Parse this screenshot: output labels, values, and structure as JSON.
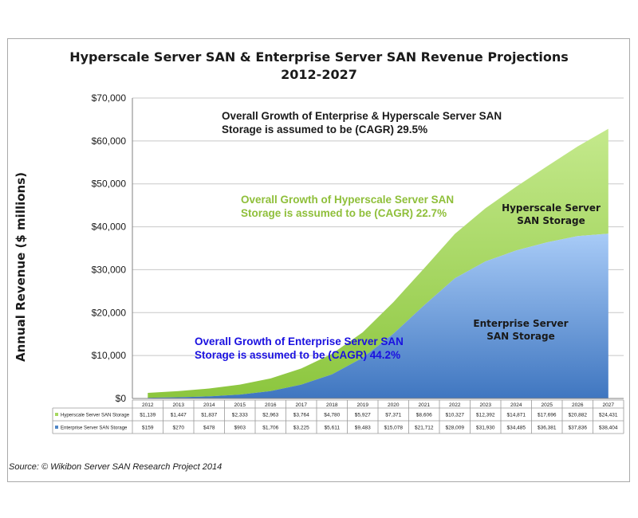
{
  "chart_data": {
    "type": "area",
    "stacked": true,
    "title_line1": "Hyperscale Server SAN & Enterprise Server SAN Revenue Projections",
    "title_line2": "2012-2027",
    "ylabel": "Annual Revenue ($ millions)",
    "xlabel": "",
    "ylim": [
      0,
      70000
    ],
    "grid": true,
    "y_ticks": [
      0,
      10000,
      20000,
      30000,
      40000,
      50000,
      60000,
      70000
    ],
    "y_tick_labels": [
      "$0",
      "$10,000",
      "$20,000",
      "$30,000",
      "$40,000",
      "$50,000",
      "$60,000",
      "$70,000"
    ],
    "categories": [
      "2012",
      "2013",
      "2014",
      "2015",
      "2016",
      "2017",
      "2018",
      "2019",
      "2020",
      "2021",
      "2022",
      "2023",
      "2024",
      "2025",
      "2026",
      "2027"
    ],
    "series": [
      {
        "name": "Enterprise Server SAN Storage",
        "color": "#4f86c6",
        "values": [
          159,
          270,
          478,
          903,
          1706,
          3225,
          5611,
          9483,
          15078,
          21712,
          28009,
          31930,
          34485,
          36381,
          37836,
          38404
        ],
        "labels": [
          "$159",
          "$270",
          "$478",
          "$903",
          "$1,706",
          "$3,225",
          "$5,611",
          "$9,483",
          "$15,078",
          "$21,712",
          "$28,009",
          "$31,930",
          "$34,485",
          "$36,381",
          "$37,836",
          "$38,404"
        ]
      },
      {
        "name": "Hyperscale Server SAN Storage",
        "color": "#a6d860",
        "values": [
          1139,
          1447,
          1837,
          2333,
          2963,
          3764,
          4780,
          5927,
          7371,
          8606,
          10327,
          12392,
          14871,
          17696,
          20882,
          24431
        ],
        "labels": [
          "$1,139",
          "$1,447",
          "$1,837",
          "$2,333",
          "$2,963",
          "$3,764",
          "$4,780",
          "$5,927",
          "$7,371",
          "$8,606",
          "$10,327",
          "$12,392",
          "$14,871",
          "$17,696",
          "$20,882",
          "$24,431"
        ]
      }
    ],
    "table_row_order": [
      1,
      0
    ],
    "annotations": {
      "overall": "Overall Growth of Enterprise & Hyperscale Server SAN Storage is assumed to be (CAGR) 29.5%",
      "hyperscale": "Overall Growth of Hyperscale Server SAN Storage is assumed to be (CAGR) 22.7%",
      "enterprise": "Overall Growth of Enterprise Server SAN Storage is assumed to be (CAGR) 44.2%"
    },
    "series_labels": {
      "hyperscale": "Hyperscale Server SAN Storage",
      "enterprise": "Enterprise Server SAN Storage"
    },
    "source": "Source: © Wikibon Server SAN Research Project 2014"
  }
}
